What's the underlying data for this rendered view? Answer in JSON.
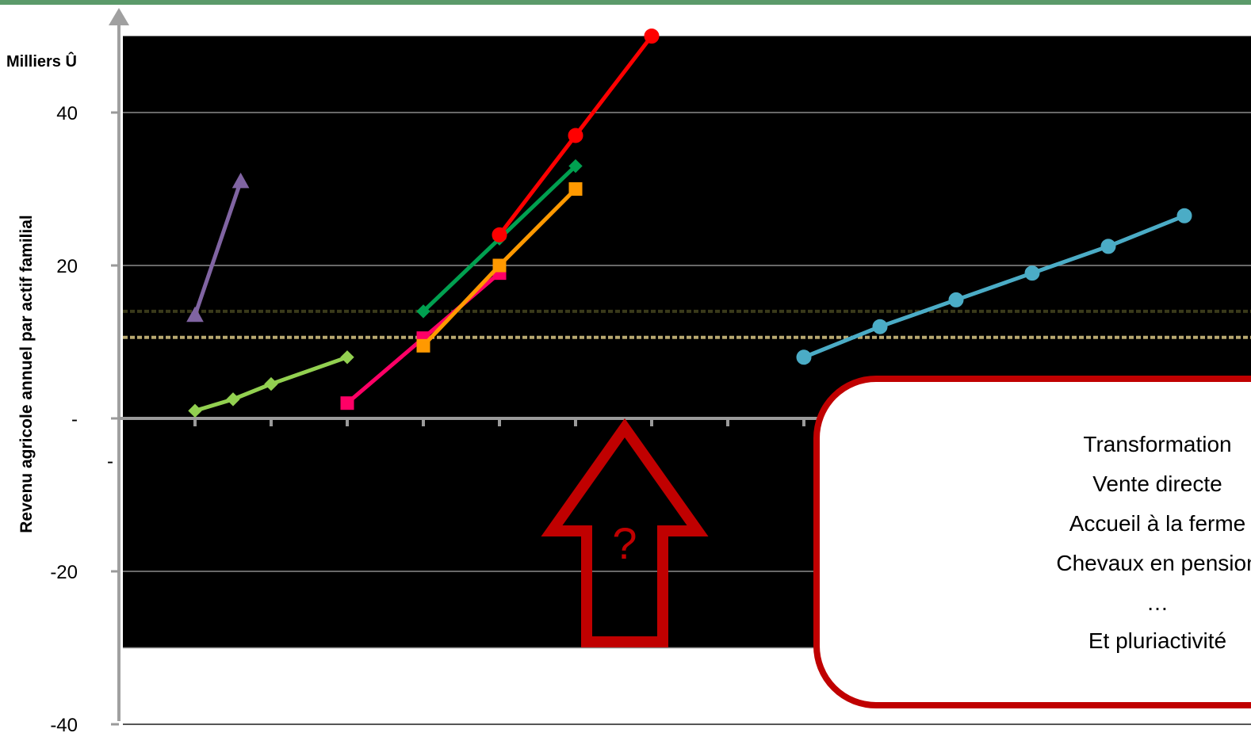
{
  "chart_data": {
    "type": "line",
    "title": "",
    "unit_label": "Milliers Û",
    "ylabel": "Revenu agricole annuel par actif familial",
    "xlabel": "",
    "ylim": [
      -40,
      50
    ],
    "xlim": [
      0,
      16
    ],
    "ytick_labels": [
      {
        "value": 40,
        "label": "40"
      },
      {
        "value": 20,
        "label": "20"
      },
      {
        "value": 0,
        "label": "-"
      },
      {
        "value": -5.5,
        "label": "-"
      },
      {
        "value": -20,
        "label": "-20"
      },
      {
        "value": -40,
        "label": "-40"
      }
    ],
    "plot_area_ymin": -30,
    "grid": true,
    "threshold_lines": [
      {
        "value": 14,
        "color": "#3a3a1a"
      },
      {
        "value": 10.6,
        "color": "#b8a870"
      }
    ],
    "series": [
      {
        "color": "#8064a2",
        "marker": "triangle",
        "x": [
          1,
          1.6
        ],
        "y": [
          13.5,
          31
        ]
      },
      {
        "color": "#92d050",
        "marker": "diamond",
        "x": [
          1,
          1.5,
          2,
          3
        ],
        "y": [
          1,
          2.5,
          4.5,
          8
        ]
      },
      {
        "color": "#ff0066",
        "marker": "square",
        "x": [
          3,
          4,
          5
        ],
        "y": [
          2,
          10.5,
          19
        ]
      },
      {
        "color": "#ff9900",
        "marker": "square",
        "x": [
          4,
          5,
          6
        ],
        "y": [
          9.5,
          20,
          30
        ]
      },
      {
        "color": "#00a050",
        "marker": "diamond",
        "x": [
          4,
          5,
          6
        ],
        "y": [
          14,
          23.5,
          33
        ]
      },
      {
        "color": "#ff0000",
        "marker": "circle",
        "x": [
          5,
          6,
          7
        ],
        "y": [
          24,
          37,
          50
        ]
      },
      {
        "color": "#4bacc6",
        "marker": "circle",
        "x": [
          9,
          10,
          11,
          12,
          13,
          14
        ],
        "y": [
          8,
          12,
          15.5,
          19,
          22.5,
          26.5
        ]
      }
    ]
  },
  "callout": {
    "lines": [
      "Transformation",
      "Vente directe",
      "Accueil à la ferme",
      "Chevaux en pension",
      "…",
      "Et pluriactivité"
    ],
    "arrow_label": "?",
    "colors": {
      "border": "#c00000",
      "fill": "#ffffff"
    }
  },
  "colors": {
    "plot_bg": "#000000",
    "top_bar": "#5b9a6a",
    "axis": "#a0a0a0"
  }
}
